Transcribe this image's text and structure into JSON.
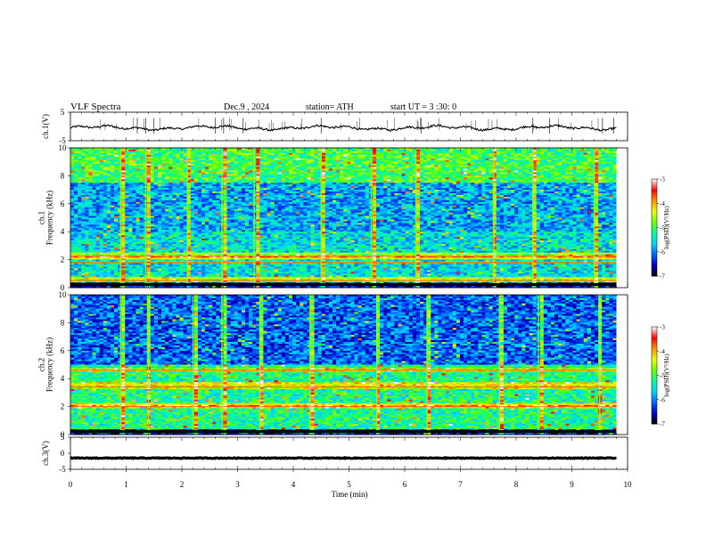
{
  "header": {
    "title": "VLF  Spectra",
    "date": "Dec.9  , 2024",
    "station": "station= ATH",
    "start": "start  UT  =    3   :30: 0"
  },
  "chart_data": [
    {
      "type": "line",
      "panel": "ch1-waveform",
      "ylabel": "ch.1(V)",
      "ylim": [
        -5,
        5
      ],
      "yticks": [
        5,
        -5
      ],
      "xlim": [
        0,
        10
      ],
      "x_end_data": 9.8,
      "baseline_v": -0.5,
      "spike_times_min": [
        1.2,
        1.35,
        1.5,
        2.6,
        2.75,
        3.1,
        4.5,
        6.3,
        8.3,
        8.6,
        9.55,
        9.75
      ],
      "line_color": "#000000"
    },
    {
      "type": "heatmap",
      "panel": "ch1-spectrogram",
      "ylabel": "ch.1\nFrequency  (kHz)",
      "ylim": [
        0,
        10
      ],
      "yticks": [
        0,
        2,
        4,
        6,
        8,
        10
      ],
      "xlim": [
        0,
        10
      ],
      "x_end_data": 9.8,
      "colorbar": {
        "label": "log(PSD)(V²/Hz)",
        "range": [
          -7,
          -3
        ],
        "ticks": [
          -3,
          -4,
          -5,
          -6,
          -7
        ],
        "stops": [
          "#000000",
          "#0000c8",
          "#0064ff",
          "#00d2ff",
          "#00ff96",
          "#64ff00",
          "#e6ff00",
          "#ff9600",
          "#ff0000",
          "#ffffff"
        ]
      },
      "bright_lines_khz": [
        0.5,
        0.7,
        1.8,
        2.1,
        2.25,
        2.45
      ],
      "vertical_bursts_min": [
        0.9,
        1.35,
        2.1,
        2.72,
        3.3,
        4.5,
        5.4,
        6.2,
        7.6,
        8.3,
        9.4
      ]
    },
    {
      "type": "heatmap",
      "panel": "ch2-spectrogram",
      "ylabel": "ch.2\nFrequency  (kHz)",
      "ylim": [
        0,
        10
      ],
      "yticks": [
        0,
        2,
        4,
        6,
        8,
        10
      ],
      "xlim": [
        0,
        10
      ],
      "x_end_data": 9.8,
      "colorbar": {
        "label": "log(PSD)(V²/Hz)",
        "range": [
          -7,
          -3
        ],
        "ticks": [
          -3,
          -4,
          -5,
          -6,
          -7
        ],
        "stops": [
          "#000000",
          "#0000c8",
          "#0064ff",
          "#00d2ff",
          "#00ff96",
          "#64ff00",
          "#e6ff00",
          "#ff9600",
          "#ff0000",
          "#ffffff"
        ]
      },
      "bright_lines_khz": [
        2.0,
        2.15,
        3.4,
        3.6,
        4.6
      ],
      "vertical_bursts_min": [
        0.9,
        1.4,
        2.2,
        2.72,
        3.4,
        4.3,
        5.5,
        6.4,
        7.7,
        8.4,
        9.5
      ]
    },
    {
      "type": "line",
      "panel": "ch3-waveform",
      "ylabel": "ch.3(V)",
      "ylim": [
        -5,
        5
      ],
      "yticks": [
        5,
        0,
        -5
      ],
      "xlim": [
        0,
        10
      ],
      "x_end_data": 9.8,
      "baseline_v": -1.5,
      "xlabel": "Time  (min)",
      "xticks": [
        0,
        1,
        2,
        3,
        4,
        5,
        6,
        7,
        8,
        9,
        10
      ],
      "line_color": "#000000"
    }
  ]
}
